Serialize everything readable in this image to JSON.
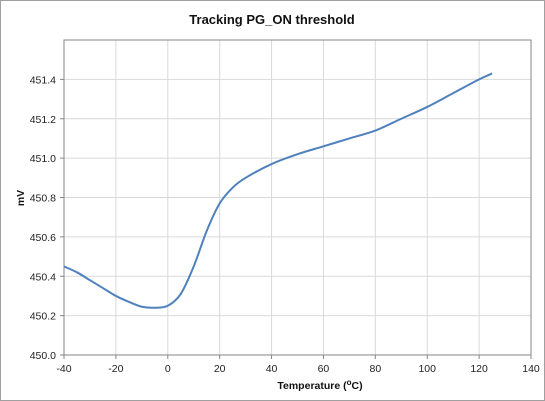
{
  "chart_data": {
    "type": "line",
    "title": "Tracking PG_ON  threshold",
    "xlabel": "Temperature (",
    "xlabel_sup": "o",
    "xlabel_suffix": "C)",
    "ylabel": "mV",
    "xlim": [
      -40,
      140
    ],
    "ylim": [
      450.0,
      451.6
    ],
    "xticks": [
      -40,
      -20,
      0,
      20,
      40,
      60,
      80,
      100,
      120,
      140
    ],
    "yticks": [
      450.0,
      450.2,
      450.4,
      450.6,
      450.8,
      451.0,
      451.2,
      451.4
    ],
    "ytick_labels": [
      "450.0",
      "450.2",
      "450.4",
      "450.6",
      "450.8",
      "451.0",
      "451.2",
      "451.4"
    ],
    "grid": true,
    "series": [
      {
        "color": "#4f81bd",
        "x": [
          -40,
          -35,
          -30,
          -25,
          -20,
          -15,
          -10,
          -5,
          0,
          5,
          10,
          15,
          20,
          25,
          30,
          40,
          50,
          60,
          70,
          80,
          90,
          100,
          110,
          120,
          125
        ],
        "y": [
          450.45,
          450.42,
          450.38,
          450.34,
          450.3,
          450.27,
          450.245,
          450.24,
          450.25,
          450.31,
          450.45,
          450.63,
          450.77,
          450.85,
          450.9,
          450.97,
          451.02,
          451.06,
          451.1,
          451.14,
          451.2,
          451.26,
          451.33,
          451.4,
          451.43
        ]
      }
    ]
  }
}
